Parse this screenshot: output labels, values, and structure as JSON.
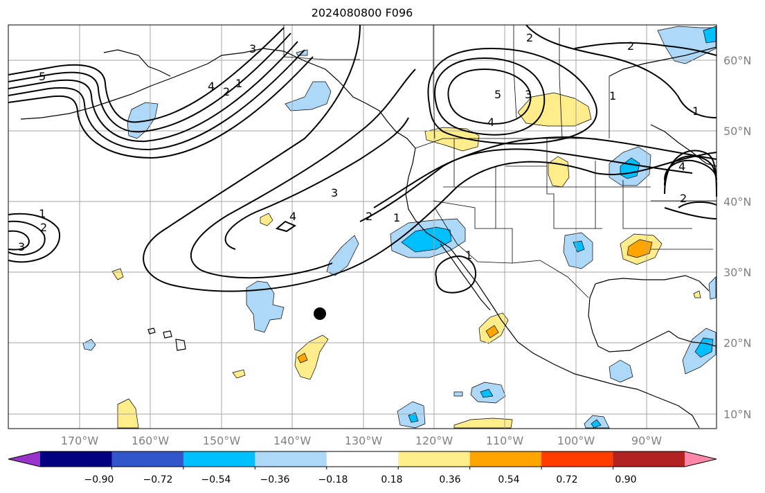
{
  "title": "2024080800 F096",
  "map": {
    "lon_ticks": [
      "170°W",
      "160°W",
      "150°W",
      "140°W",
      "130°W",
      "120°W",
      "110°W",
      "100°W",
      "90°W"
    ],
    "lat_ticks": [
      "60°N",
      "50°N",
      "40°N",
      "30°N",
      "20°N",
      "10°N"
    ],
    "grid": true,
    "label_color": "#808080",
    "coastline_color": "#000000",
    "contour_color": "#000000"
  },
  "colorbar": {
    "ticks": [
      "−0.90",
      "−0.72",
      "−0.54",
      "−0.36",
      "−0.18",
      "0.18",
      "0.36",
      "0.54",
      "0.72",
      "0.90"
    ],
    "colors": [
      "#9933cc",
      "#000080",
      "#3355cc",
      "#00bfff",
      "#add8f8",
      "#ffffff",
      "#ffec8b",
      "#ffa500",
      "#ff3c00",
      "#b22222",
      "#ff88aa"
    ],
    "extend": "both"
  },
  "contour_labels": [
    "5",
    "4",
    "3",
    "2",
    "1",
    "2",
    "1",
    "5",
    "4",
    "3",
    "2",
    "1",
    "4",
    "3",
    "2",
    "1",
    "1",
    "2",
    "3",
    "2",
    "1",
    "4"
  ],
  "marker": {
    "name": "black dot",
    "color": "#000000"
  }
}
